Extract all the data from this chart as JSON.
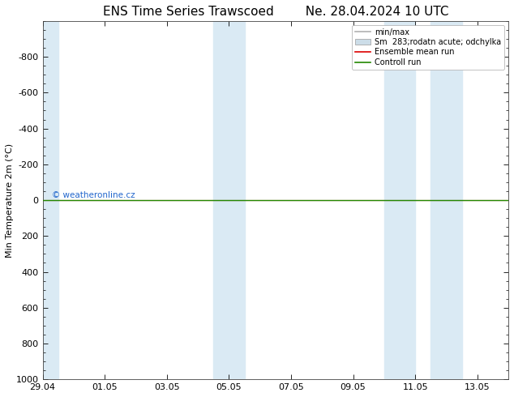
{
  "title_left": "ENS Time Series Trawscoed",
  "title_right": "Ne. 28.04.2024 10 UTC",
  "ylabel": "Min Temperature 2m (°C)",
  "ylim_bottom": 1000,
  "ylim_top": -1000,
  "yticks": [
    -800,
    -600,
    -400,
    -200,
    0,
    200,
    400,
    600,
    800,
    1000
  ],
  "xtick_labels": [
    "29.04",
    "01.05",
    "03.05",
    "05.05",
    "07.05",
    "09.05",
    "11.05",
    "13.05"
  ],
  "xtick_positions": [
    0,
    2,
    4,
    6,
    8,
    10,
    12,
    14
  ],
  "legend_entries": [
    "min/max",
    "Sm  283;rodatn acute; odchylka",
    "Ensemble mean run",
    "Controll run"
  ],
  "legend_colors": [
    "#b0b0b0",
    "#ccdde8",
    "#dd0000",
    "#228800"
  ],
  "shaded_ranges": [
    [
      0,
      0.5
    ],
    [
      5.5,
      6.5
    ],
    [
      11.0,
      12.0
    ],
    [
      12.5,
      13.5
    ]
  ],
  "shaded_color": "#daeaf4",
  "control_run_y": 0,
  "ensemble_mean_y": 0,
  "watermark": "© weatheronline.cz",
  "watermark_color": "#2266cc",
  "background_color": "#ffffff",
  "title_fontsize": 11,
  "label_fontsize": 8,
  "tick_fontsize": 8,
  "legend_fontsize": 7
}
